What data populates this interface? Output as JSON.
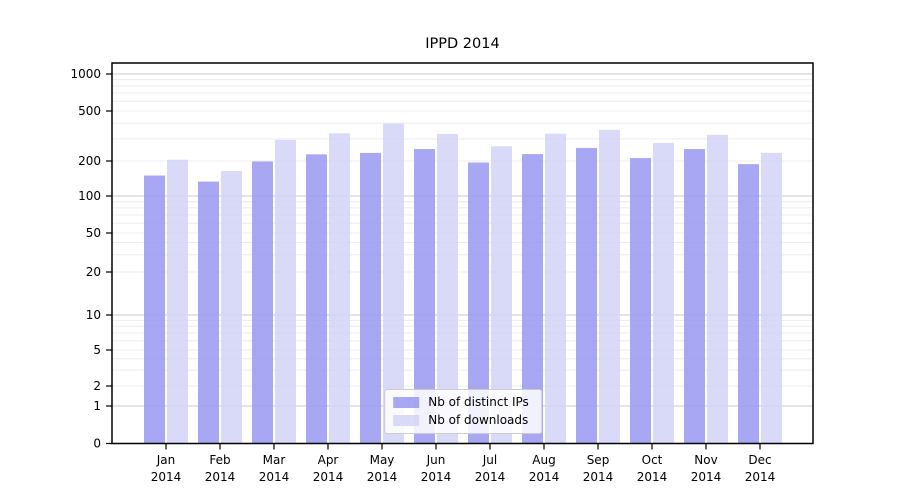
{
  "chart_data": {
    "type": "bar",
    "title": "IPPD 2014",
    "x": [
      "Jan",
      "Feb",
      "Mar",
      "Apr",
      "May",
      "Jun",
      "Jul",
      "Aug",
      "Sep",
      "Oct",
      "Nov",
      "Dec"
    ],
    "x_year": "2014",
    "series": [
      {
        "name": "Nb of distinct IPs",
        "color": "#9898f2",
        "values": [
          150,
          133,
          198,
          226,
          232,
          249,
          194,
          227,
          254,
          211,
          249,
          188
        ]
      },
      {
        "name": "Nb of downloads",
        "color": "#d2d2f7",
        "values": [
          205,
          164,
          295,
          332,
          397,
          328,
          262,
          330,
          354,
          279,
          323,
          232
        ]
      }
    ],
    "y_ticks": [
      0,
      1,
      2,
      5,
      10,
      20,
      50,
      100,
      200,
      500,
      1000
    ],
    "y_scale": "symlog",
    "ylim": [
      0,
      1200
    ],
    "grid": "horizontal-log-minor-and-major",
    "legend_position": "lower-center-inside",
    "colors": {
      "bar_ips": "#a8a8f4",
      "bar_downloads": "#d9d9f8",
      "grid_major": "#c8c8c8",
      "grid_minor": "#ececec",
      "axis": "#000000",
      "background": "#ffffff"
    }
  }
}
